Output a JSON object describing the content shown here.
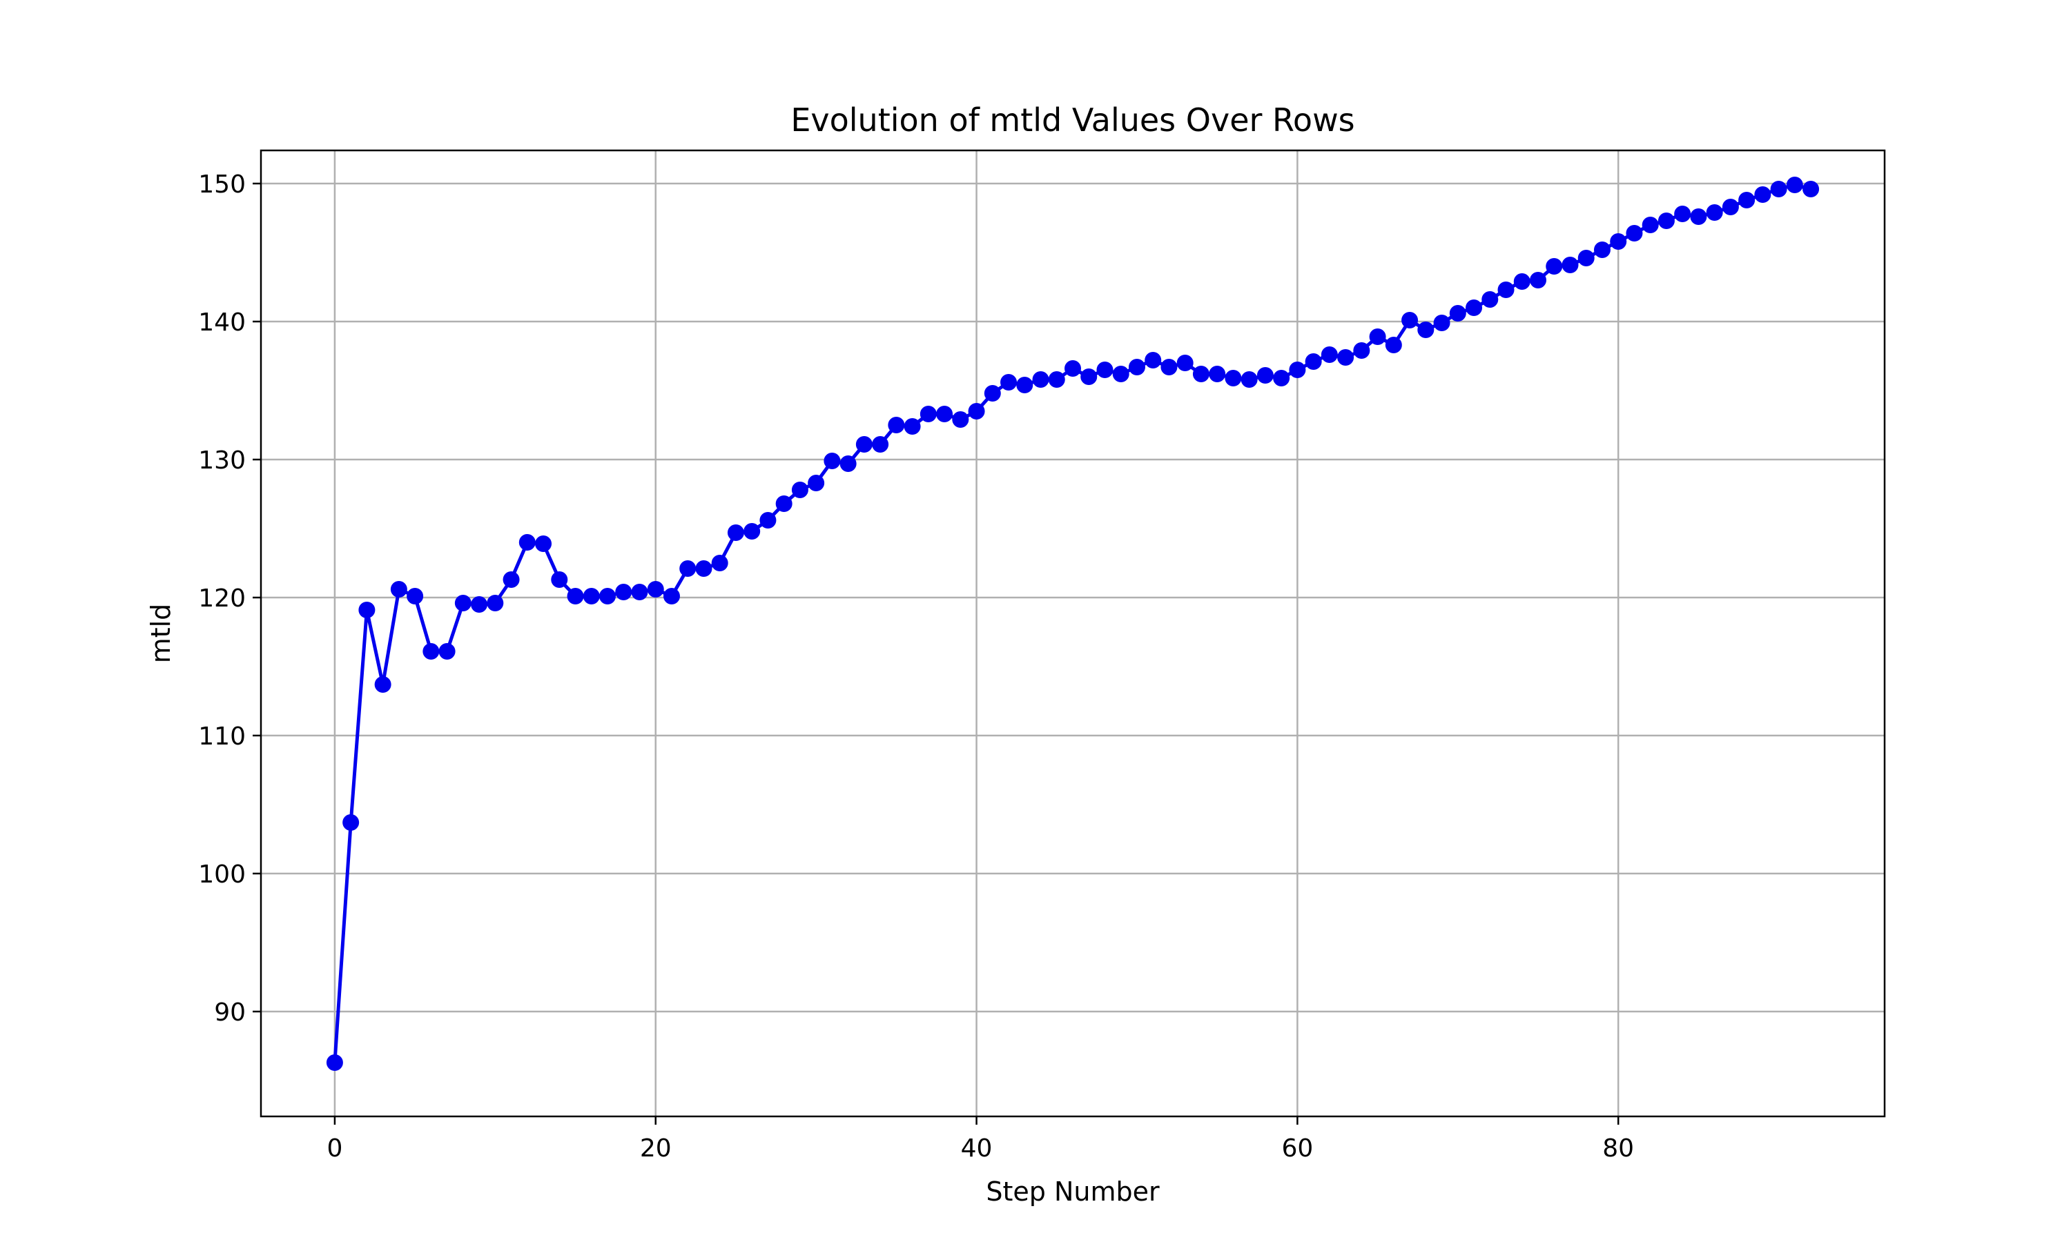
{
  "chart_data": {
    "type": "line",
    "title": "Evolution of mtld Values Over Rows",
    "xlabel": "Step Number",
    "ylabel": "mtld",
    "xlim": [
      -4.6,
      96.6
    ],
    "ylim": [
      82.4,
      152.4
    ],
    "xticks": [
      0,
      20,
      40,
      60,
      80
    ],
    "yticks": [
      90,
      100,
      110,
      120,
      130,
      140,
      150
    ],
    "grid": true,
    "marker": "circle",
    "colors": {
      "series": "#0000ee",
      "grid": "#b0b0b0",
      "axes": "#000000"
    },
    "series": [
      {
        "x": [
          0,
          1,
          2,
          3,
          4,
          5,
          6,
          7,
          8,
          9,
          10,
          11,
          12,
          13,
          14,
          15,
          16,
          17,
          18,
          19,
          20,
          21,
          22,
          23,
          24,
          25,
          26,
          27,
          28,
          29,
          30,
          31,
          32,
          33,
          34,
          35,
          36,
          37,
          38,
          39,
          40,
          41,
          42,
          43,
          44,
          45,
          46,
          47,
          48,
          49,
          50,
          51,
          52,
          53,
          54,
          55,
          56,
          57,
          58,
          59,
          60,
          61,
          62,
          63,
          64,
          65,
          66,
          67,
          68,
          69,
          70,
          71,
          72,
          73,
          74,
          75,
          76,
          77,
          78,
          79,
          80,
          81,
          82,
          83,
          84,
          85,
          86,
          87,
          88,
          89,
          90,
          91,
          92
        ],
        "values": [
          86.3,
          103.7,
          119.1,
          113.7,
          120.6,
          120.1,
          116.1,
          116.1,
          119.6,
          119.5,
          119.6,
          121.3,
          124.0,
          123.9,
          121.3,
          120.1,
          120.1,
          120.1,
          120.4,
          120.4,
          120.6,
          120.1,
          122.1,
          122.1,
          122.5,
          124.7,
          124.8,
          125.6,
          126.8,
          127.8,
          128.3,
          129.9,
          129.7,
          131.1,
          131.1,
          132.5,
          132.4,
          133.3,
          133.3,
          132.9,
          133.5,
          134.8,
          135.6,
          135.4,
          135.8,
          135.8,
          136.6,
          136.0,
          136.5,
          136.2,
          136.7,
          137.2,
          136.7,
          137.0,
          136.2,
          136.2,
          135.9,
          135.8,
          136.1,
          135.9,
          136.5,
          137.1,
          137.6,
          137.4,
          137.9,
          138.9,
          138.3,
          140.1,
          139.4,
          139.9,
          140.6,
          141.0,
          141.6,
          142.3,
          142.9,
          143.0,
          144.0,
          144.1,
          144.6,
          145.2,
          145.8,
          146.4,
          147.0,
          147.3,
          147.8,
          147.6,
          147.9,
          148.3,
          148.8,
          149.2,
          149.6,
          149.9,
          149.6
        ]
      }
    ]
  }
}
